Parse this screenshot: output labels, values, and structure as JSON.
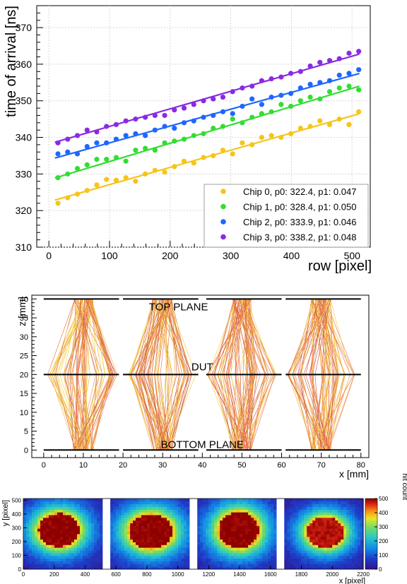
{
  "chart_data": [
    {
      "type": "scatter",
      "title": "",
      "xlabel": "row [pixel]",
      "ylabel": "time of arrival [ns]",
      "xlim": [
        -20,
        530
      ],
      "ylim": [
        310,
        376
      ],
      "xticks": [
        0,
        100,
        200,
        300,
        400,
        500
      ],
      "yticks": [
        310,
        320,
        330,
        340,
        350,
        360,
        370
      ],
      "grid": true,
      "legend_placement": "bottom-right",
      "series": [
        {
          "name": "Chip 0, p0: 322.4, p1: 0.047",
          "color": "#f5c518",
          "fit": {
            "p0": 322.4,
            "p1": 0.047
          },
          "x": [
            15,
            31,
            47,
            63,
            79,
            95,
            111,
            127,
            143,
            159,
            175,
            191,
            207,
            223,
            239,
            255,
            271,
            287,
            303,
            319,
            335,
            351,
            367,
            383,
            399,
            415,
            431,
            447,
            463,
            479,
            495,
            511
          ],
          "y": [
            322.0,
            323.5,
            324.5,
            325.5,
            327.0,
            328.5,
            328.3,
            329.0,
            328.0,
            330.0,
            331.0,
            330.5,
            332.0,
            333.5,
            333.0,
            334.5,
            335.0,
            336.5,
            335.5,
            338.5,
            338.0,
            340.0,
            340.5,
            340.0,
            341.0,
            342.5,
            343.0,
            344.5,
            343.5,
            345.0,
            343.5,
            347.0
          ]
        },
        {
          "name": "Chip 1, p0: 328.4, p1: 0.050",
          "color": "#33dd33",
          "fit": {
            "p0": 328.4,
            "p1": 0.05
          },
          "x": [
            15,
            31,
            47,
            63,
            79,
            95,
            111,
            127,
            143,
            159,
            175,
            191,
            207,
            223,
            239,
            255,
            271,
            287,
            303,
            319,
            335,
            351,
            367,
            383,
            399,
            415,
            431,
            447,
            463,
            479,
            495,
            511
          ],
          "y": [
            329.0,
            330.0,
            331.5,
            332.5,
            334.0,
            334.0,
            334.5,
            333.5,
            336.5,
            337.0,
            336.5,
            338.5,
            339.0,
            339.5,
            340.5,
            341.0,
            342.5,
            343.0,
            345.0,
            344.0,
            345.5,
            346.5,
            347.0,
            349.0,
            348.5,
            350.0,
            351.0,
            350.5,
            352.5,
            353.5,
            354.0,
            353.0
          ]
        },
        {
          "name": "Chip 2, p0: 333.9, p1: 0.046",
          "color": "#1f66ff",
          "fit": {
            "p0": 333.9,
            "p1": 0.046
          },
          "x": [
            15,
            31,
            47,
            63,
            79,
            95,
            111,
            127,
            143,
            159,
            175,
            191,
            207,
            223,
            239,
            255,
            271,
            287,
            303,
            319,
            335,
            351,
            367,
            383,
            399,
            415,
            431,
            447,
            463,
            479,
            495,
            511
          ],
          "y": [
            335.5,
            336.0,
            335.5,
            337.5,
            338.5,
            338.5,
            339.5,
            340.5,
            341.0,
            340.5,
            342.0,
            343.0,
            342.5,
            344.0,
            344.5,
            345.5,
            346.0,
            347.0,
            346.5,
            348.5,
            350.5,
            349.0,
            351.0,
            351.5,
            352.0,
            353.5,
            354.5,
            355.0,
            355.5,
            357.0,
            357.5,
            358.5
          ]
        },
        {
          "name": "Chip 3, p0: 338.2, p1: 0.048",
          "color": "#8a2be2",
          "fit": {
            "p0": 338.2,
            "p1": 0.048
          },
          "x": [
            15,
            31,
            47,
            63,
            79,
            95,
            111,
            127,
            143,
            159,
            175,
            191,
            207,
            223,
            239,
            255,
            271,
            287,
            303,
            319,
            335,
            351,
            367,
            383,
            399,
            415,
            431,
            447,
            463,
            479,
            495,
            511
          ],
          "y": [
            338.5,
            339.5,
            340.5,
            342.0,
            341.5,
            343.0,
            343.5,
            344.5,
            345.0,
            345.5,
            346.0,
            346.0,
            347.5,
            348.0,
            349.0,
            350.0,
            350.5,
            351.0,
            352.5,
            353.5,
            354.0,
            355.5,
            356.0,
            356.5,
            357.5,
            358.0,
            359.5,
            360.5,
            361.0,
            361.5,
            363.0,
            363.5
          ]
        }
      ]
    },
    {
      "type": "line",
      "title": "",
      "xlabel": "x [mm]",
      "ylabel": "z [mm]",
      "xlim": [
        -3,
        82
      ],
      "ylim": [
        -2,
        41
      ],
      "xticks": [
        0,
        10,
        20,
        30,
        40,
        50,
        60,
        70,
        80
      ],
      "yticks": [
        0,
        5,
        10,
        15,
        20,
        25,
        30,
        35,
        40
      ],
      "planes": [
        {
          "label": "TOP PLANE",
          "z": 40
        },
        {
          "label": "DUT",
          "z": 20
        },
        {
          "label": "BOTTOM PLANE",
          "z": 0
        }
      ],
      "chip_segments": [
        [
          0,
          19
        ],
        [
          20,
          39
        ],
        [
          41,
          60
        ],
        [
          61,
          80
        ]
      ],
      "beam_centers": [
        10,
        30,
        50,
        70
      ],
      "beam_half_width_top": 2.5,
      "beam_half_width_dut": 9,
      "track_colors": [
        "#c0392b",
        "#d35400",
        "#e67e22",
        "#f1c40f",
        "#e74c3c",
        "#f39c12"
      ]
    },
    {
      "type": "heatmap",
      "title": "",
      "xlabel": "x [pixel]",
      "ylabel": "y [pixel]",
      "colorbar_label": "hit count",
      "xlim": [
        0,
        2200
      ],
      "ylim": [
        0,
        512
      ],
      "xticks": [
        0,
        200,
        400,
        600,
        800,
        1000,
        1200,
        1400,
        1600,
        1800,
        2000,
        2200
      ],
      "yticks": [
        0,
        100,
        200,
        300,
        400,
        500
      ],
      "zlim": [
        0,
        500
      ],
      "zticks": [
        0,
        100,
        200,
        300,
        400,
        500
      ],
      "chips": [
        {
          "x0": 0,
          "x1": 512,
          "cx": 230,
          "cy": 285,
          "rx": 130,
          "ry": 120,
          "peak": 500
        },
        {
          "x0": 563,
          "x1": 1075,
          "cx": 825,
          "cy": 275,
          "rx": 140,
          "ry": 125,
          "peak": 500
        },
        {
          "x0": 1126,
          "x1": 1638,
          "cx": 1395,
          "cy": 285,
          "rx": 130,
          "ry": 130,
          "peak": 500
        },
        {
          "x0": 1689,
          "x1": 2201,
          "cx": 1955,
          "cy": 270,
          "rx": 120,
          "ry": 110,
          "peak": 480
        }
      ]
    }
  ]
}
